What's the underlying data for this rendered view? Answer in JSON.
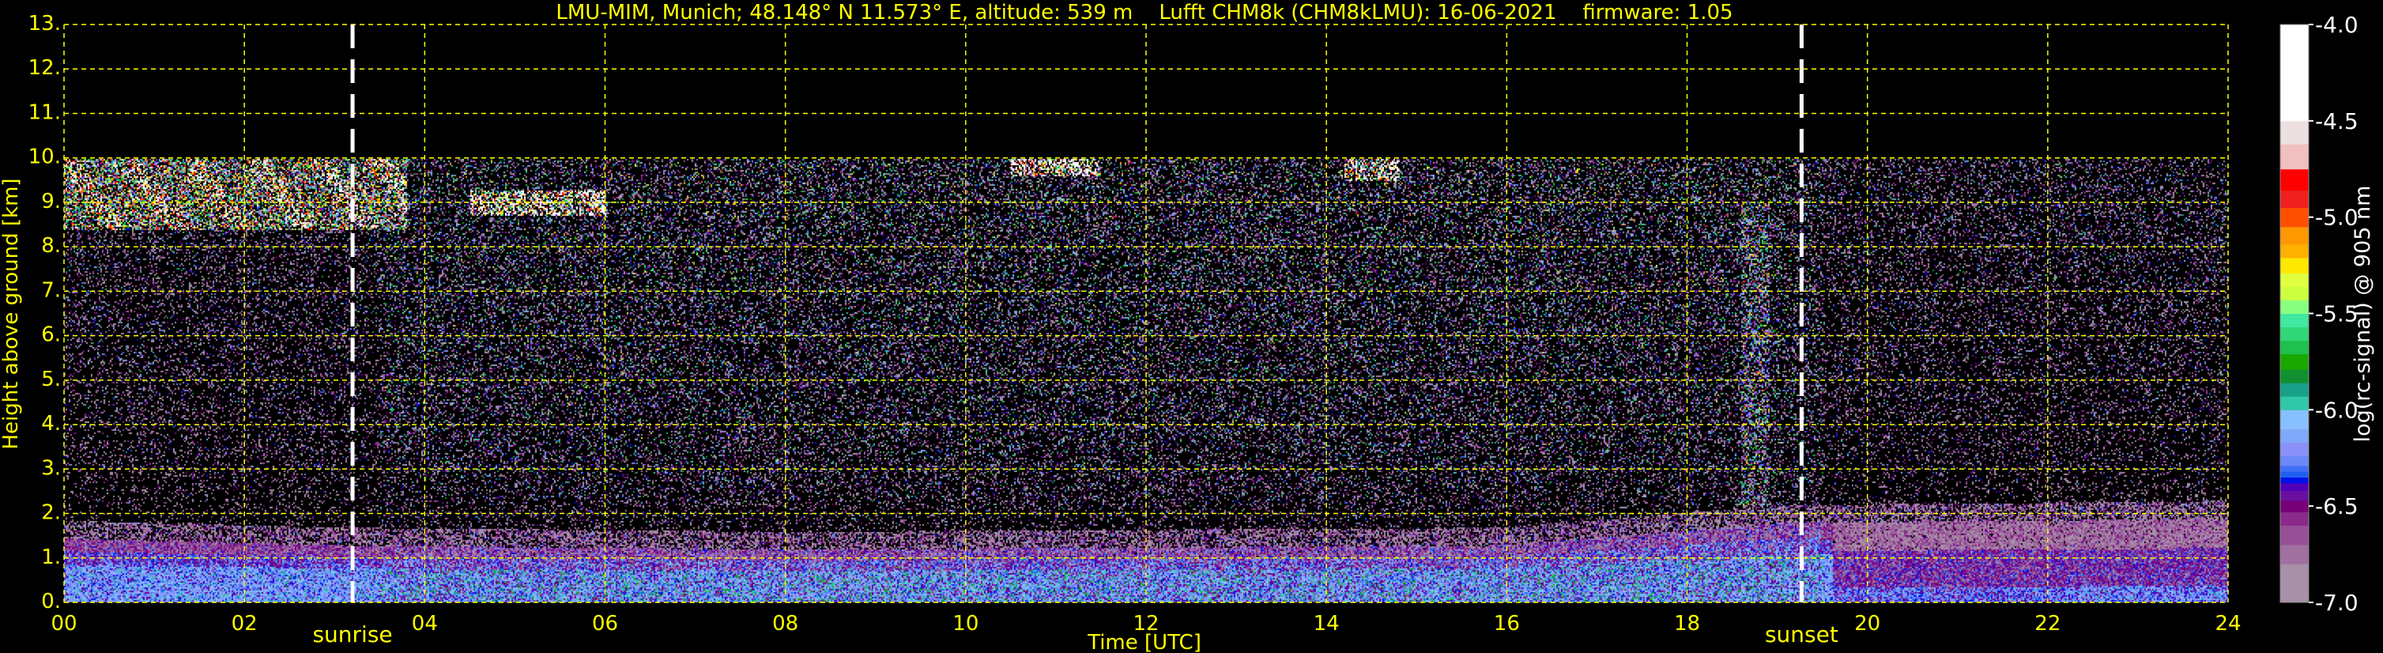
{
  "chart_data": {
    "type": "heatmap",
    "title": "LMU-MIM, Munich; 48.148° N 11.573° E, altitude: 539 m    Lufft CHM8k (CHM8kLMU): 16-06-2021    firmware: 1.05",
    "xlabel": "Time [UTC]",
    "ylabel": "Height above ground [km]",
    "xlim": [
      0,
      24
    ],
    "ylim": [
      0,
      13
    ],
    "x_ticks": [
      0,
      2,
      4,
      6,
      8,
      10,
      12,
      14,
      16,
      18,
      20,
      22,
      24
    ],
    "x_tick_labels": [
      "00",
      "02",
      "04",
      "06",
      "08",
      "10",
      "12",
      "14",
      "16",
      "18",
      "20",
      "22",
      "24"
    ],
    "y_ticks": [
      0,
      1,
      2,
      3,
      4,
      5,
      6,
      7,
      8,
      9,
      10,
      11,
      12,
      13
    ],
    "y_tick_labels": [
      "0.",
      "1.",
      "2.",
      "3.",
      "4.",
      "5.",
      "6.",
      "7.",
      "8.",
      "9.",
      "10.",
      "11.",
      "12.",
      "13."
    ],
    "grid": true,
    "grid_color": "#ffff00",
    "data_top_km": 10,
    "annotations": [
      {
        "label": "sunrise",
        "time_h": 3.2
      },
      {
        "label": "sunset",
        "time_h": 19.27
      }
    ],
    "colorbar": {
      "label": "log(rc-signal) @ 905 nm",
      "range": [
        -7.0,
        -4.0
      ],
      "ticks": [
        -4.0,
        -4.5,
        -5.0,
        -5.5,
        -6.0,
        -6.5,
        -7.0
      ],
      "tick_labels": [
        "-4.0",
        "-4.5",
        "-5.0",
        "-5.5",
        "-6.0",
        "-6.5",
        "-7.0"
      ],
      "levels": [
        {
          "from": -7.0,
          "to": -6.8,
          "color": "#a890a8"
        },
        {
          "from": -6.8,
          "to": -6.7,
          "color": "#a070a0"
        },
        {
          "from": -6.7,
          "to": -6.6,
          "color": "#965096"
        },
        {
          "from": -6.6,
          "to": -6.53,
          "color": "#8a2a8a"
        },
        {
          "from": -6.53,
          "to": -6.47,
          "color": "#780078"
        },
        {
          "from": -6.47,
          "to": -6.42,
          "color": "#6a10a0"
        },
        {
          "from": -6.42,
          "to": -6.38,
          "color": "#5000b8"
        },
        {
          "from": -6.38,
          "to": -6.35,
          "color": "#0010e8"
        },
        {
          "from": -6.35,
          "to": -6.32,
          "color": "#2060f0"
        },
        {
          "from": -6.32,
          "to": -6.29,
          "color": "#4070f8"
        },
        {
          "from": -6.29,
          "to": -6.24,
          "color": "#6a88f8"
        },
        {
          "from": -6.24,
          "to": -6.17,
          "color": "#8a90f8"
        },
        {
          "from": -6.17,
          "to": -6.1,
          "color": "#80a8f8"
        },
        {
          "from": -6.1,
          "to": -6.0,
          "color": "#88c0ff"
        },
        {
          "from": -6.0,
          "to": -5.93,
          "color": "#30c8a8"
        },
        {
          "from": -5.93,
          "to": -5.86,
          "color": "#18a088"
        },
        {
          "from": -5.86,
          "to": -5.79,
          "color": "#109030"
        },
        {
          "from": -5.79,
          "to": -5.71,
          "color": "#18a800"
        },
        {
          "from": -5.71,
          "to": -5.64,
          "color": "#20c050"
        },
        {
          "from": -5.64,
          "to": -5.57,
          "color": "#30d878"
        },
        {
          "from": -5.57,
          "to": -5.5,
          "color": "#40e8a0"
        },
        {
          "from": -5.5,
          "to": -5.43,
          "color": "#88ff80"
        },
        {
          "from": -5.43,
          "to": -5.36,
          "color": "#ccff40"
        },
        {
          "from": -5.36,
          "to": -5.29,
          "color": "#e0ff40"
        },
        {
          "from": -5.29,
          "to": -5.21,
          "color": "#ffe800"
        },
        {
          "from": -5.21,
          "to": -5.14,
          "color": "#ffb000"
        },
        {
          "from": -5.14,
          "to": -5.05,
          "color": "#ff9800"
        },
        {
          "from": -5.05,
          "to": -4.95,
          "color": "#ff5000"
        },
        {
          "from": -4.95,
          "to": -4.86,
          "color": "#f02020"
        },
        {
          "from": -4.86,
          "to": -4.75,
          "color": "#ff0000"
        },
        {
          "from": -4.75,
          "to": -4.62,
          "color": "#f0c0c0"
        },
        {
          "from": -4.62,
          "to": -4.5,
          "color": "#ece0e0"
        },
        {
          "from": -4.5,
          "to": -4.0,
          "color": "#ffffff"
        }
      ]
    },
    "features": {
      "aerosol_layer_top_km": [
        {
          "time_h": 0,
          "top_km": 1.45
        },
        {
          "time_h": 3,
          "top_km": 1.3
        },
        {
          "time_h": 8,
          "top_km": 1.2
        },
        {
          "time_h": 16,
          "top_km": 1.3
        },
        {
          "time_h": 19,
          "top_km": 1.8
        },
        {
          "time_h": 24,
          "top_km": 1.9
        }
      ],
      "cirrus": [
        {
          "start_h": 0.0,
          "end_h": 3.8,
          "base_km": 8.4,
          "top_km": 10.0
        },
        {
          "start_h": 4.5,
          "end_h": 6.0,
          "base_km": 8.7,
          "top_km": 9.3
        },
        {
          "start_h": 10.5,
          "end_h": 11.5,
          "base_km": 9.6,
          "top_km": 10.0
        },
        {
          "start_h": 14.2,
          "end_h": 14.8,
          "base_km": 9.5,
          "top_km": 10.0
        }
      ]
    }
  }
}
